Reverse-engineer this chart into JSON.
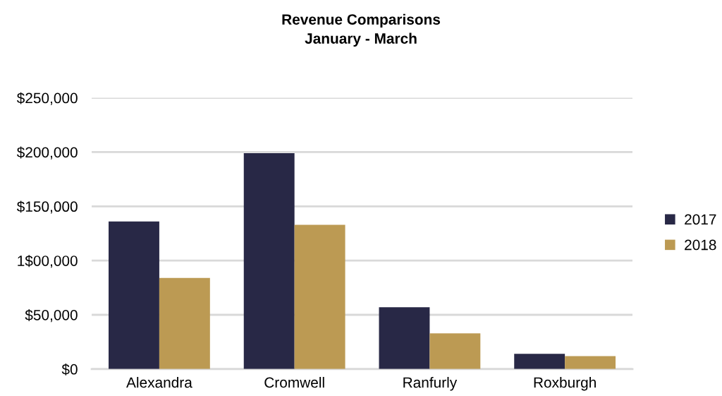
{
  "chart_data": {
    "type": "bar",
    "title": "Revenue Comparisons\nJanuary - March",
    "categories": [
      "Alexandra",
      "Cromwell",
      "Ranfurly",
      "Roxburgh"
    ],
    "series": [
      {
        "name": "2017",
        "color": "#282846",
        "values": [
          136000,
          199000,
          57000,
          14000
        ]
      },
      {
        "name": "2018",
        "color": "#bc9a53",
        "values": [
          84000,
          133000,
          33000,
          12000
        ]
      }
    ],
    "ylim": [
      0,
      250000
    ],
    "yticks": [
      {
        "value": 0,
        "label": "$0"
      },
      {
        "value": 50000,
        "label": "$50,000"
      },
      {
        "value": 100000,
        "label": "1$00,000"
      },
      {
        "value": 150000,
        "label": "$150,000"
      },
      {
        "value": 200000,
        "label": "$200,000"
      },
      {
        "value": 250000,
        "label": "$250,000"
      }
    ],
    "grid": "y",
    "legend": "right"
  }
}
